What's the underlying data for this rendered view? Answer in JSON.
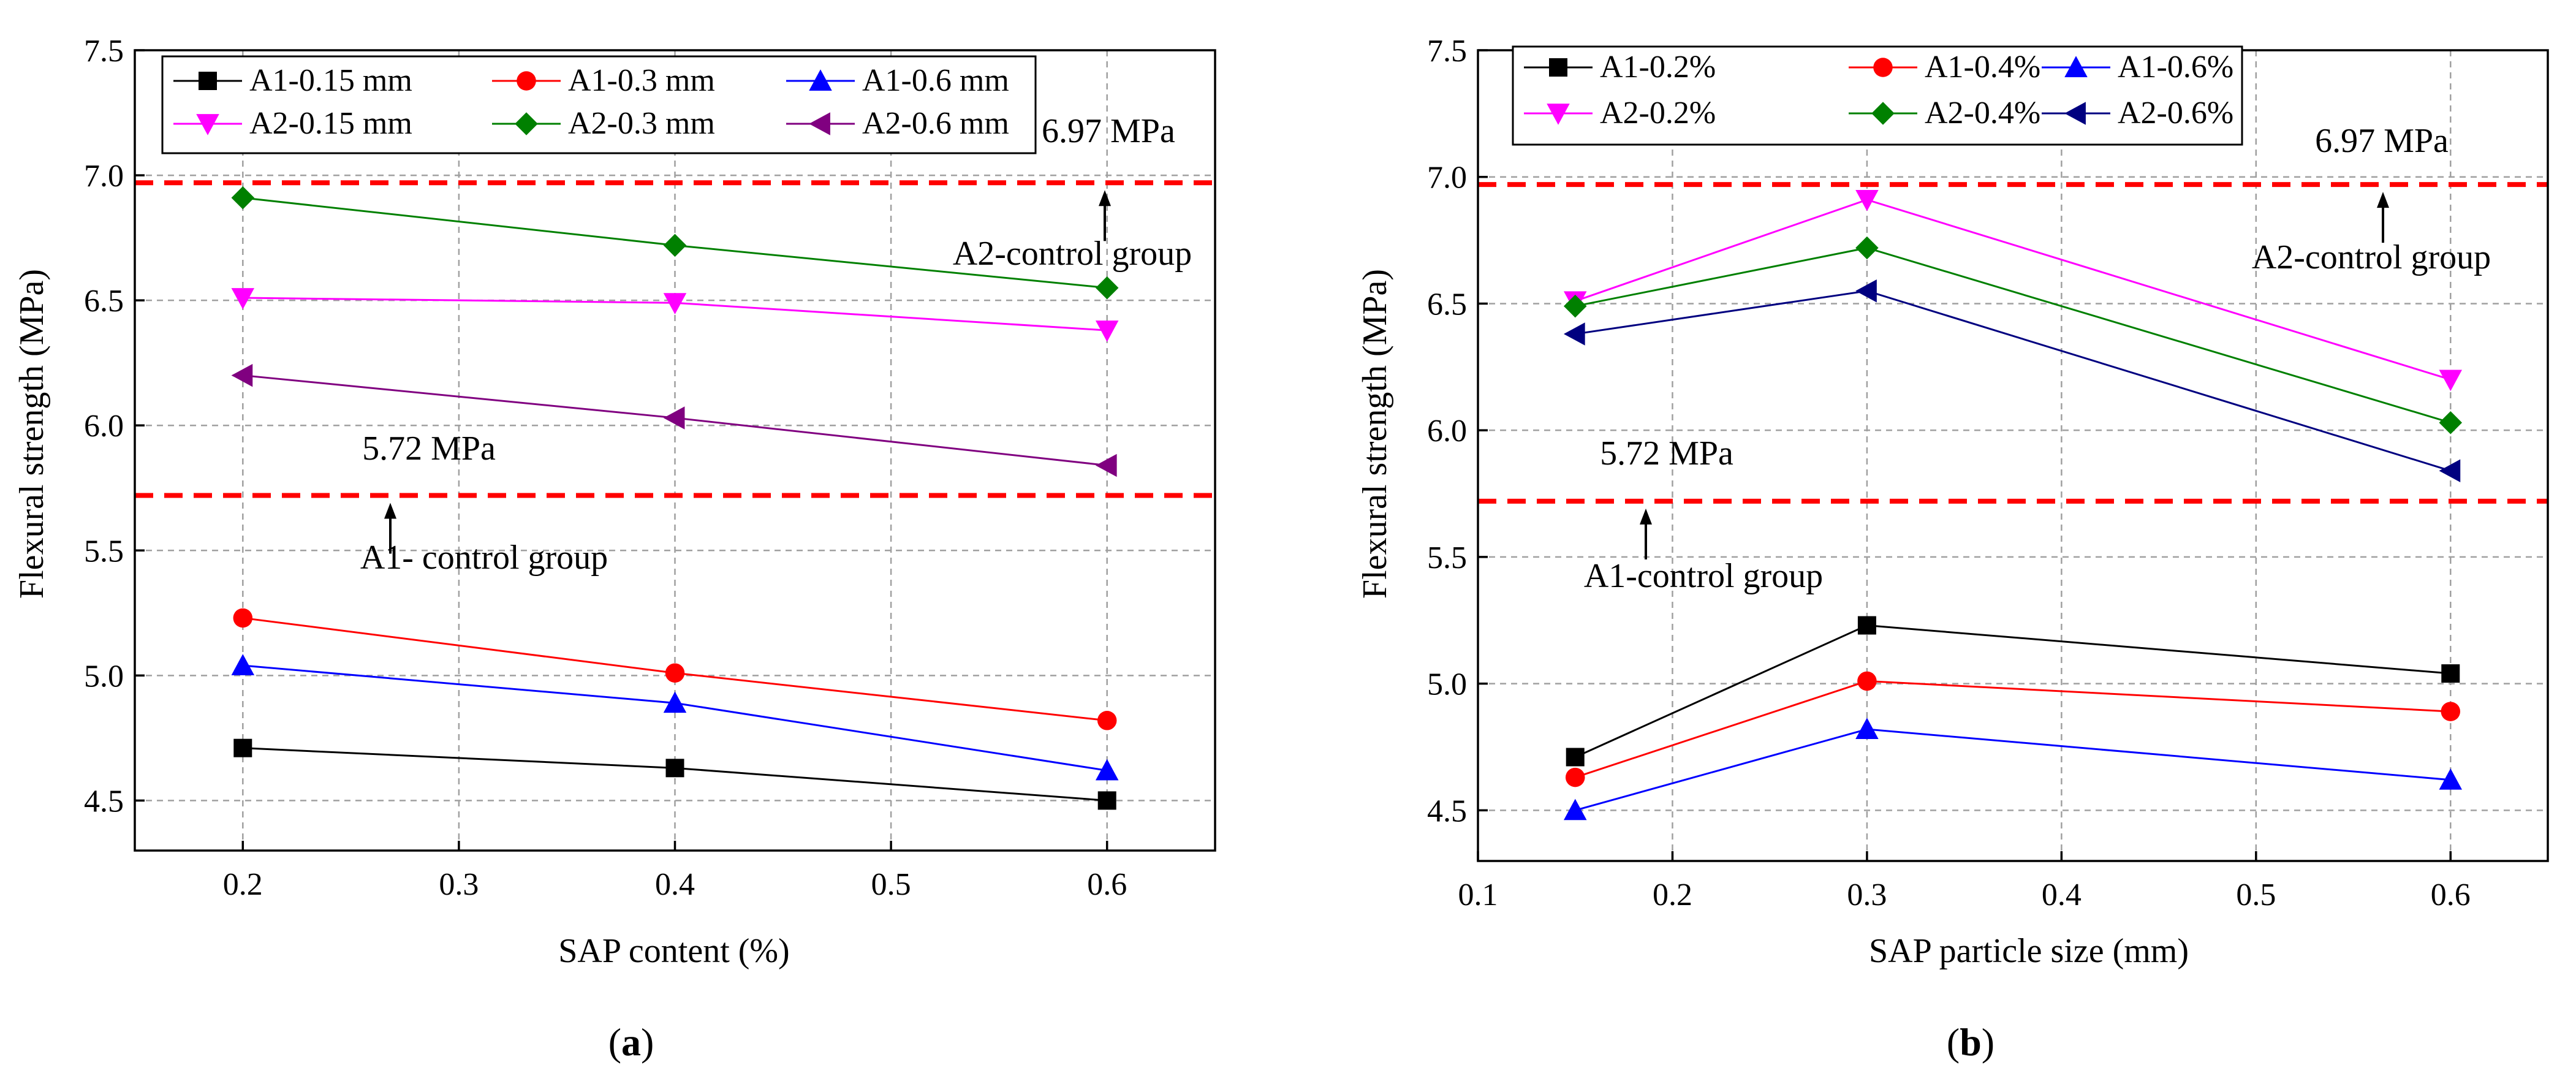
{
  "chart_data": [
    {
      "panel_label": "a",
      "type": "line",
      "xlabel": "SAP content (%)",
      "ylabel": "Flexural strength (MPa)",
      "xlim": [
        0.15,
        0.65
      ],
      "ylim": [
        4.3,
        7.5
      ],
      "xticks": [
        "0.2",
        "0.3",
        "0.4",
        "0.5",
        "0.6"
      ],
      "yticks": [
        "4.5",
        "5.0",
        "5.5",
        "6.0",
        "6.5",
        "7.0",
        "7.5"
      ],
      "x": [
        0.2,
        0.4,
        0.6
      ],
      "grid": true,
      "legend_position": "top-left",
      "series": [
        {
          "name": "A1-0.15 mm",
          "color": "#000000",
          "marker": "square",
          "values": [
            4.71,
            4.63,
            4.5
          ]
        },
        {
          "name": "A1-0.3 mm",
          "color": "#ff0000",
          "marker": "circle",
          "values": [
            5.23,
            5.01,
            4.82
          ]
        },
        {
          "name": "A1-0.6 mm",
          "color": "#0000ff",
          "marker": "triangle-up",
          "values": [
            5.04,
            4.89,
            4.62
          ]
        },
        {
          "name": "A2-0.15 mm",
          "color": "#ff00ff",
          "marker": "triangle-down",
          "values": [
            6.51,
            6.49,
            6.38
          ]
        },
        {
          "name": "A2-0.3 mm",
          "color": "#008000",
          "marker": "diamond",
          "values": [
            6.91,
            6.72,
            6.55
          ]
        },
        {
          "name": "A2-0.6 mm",
          "color": "#800080",
          "marker": "triangle-left",
          "values": [
            6.2,
            6.03,
            5.84
          ]
        }
      ],
      "reference_lines": [
        {
          "value": 6.97,
          "color": "#ff0000",
          "value_label": "6.97 MPa",
          "group_label": "A2-control group"
        },
        {
          "value": 5.72,
          "color": "#ff0000",
          "value_label": "5.72 MPa",
          "group_label": "A1- control group"
        }
      ]
    },
    {
      "panel_label": "b",
      "type": "line",
      "xlabel": "SAP particle size (mm)",
      "ylabel": "Flexural strength (MPa)",
      "xlim": [
        0.1,
        0.65
      ],
      "ylim": [
        4.3,
        7.5
      ],
      "xticks": [
        "0.1",
        "0.2",
        "0.3",
        "0.4",
        "0.5",
        "0.6"
      ],
      "yticks": [
        "4.5",
        "5.0",
        "5.5",
        "6.0",
        "6.5",
        "7.0",
        "7.5"
      ],
      "x": [
        0.15,
        0.3,
        0.6
      ],
      "grid": true,
      "legend_position": "top-left",
      "series": [
        {
          "name": "A1-0.2%",
          "color": "#000000",
          "marker": "square",
          "values": [
            4.71,
            5.23,
            5.04
          ]
        },
        {
          "name": "A1-0.4%",
          "color": "#ff0000",
          "marker": "circle",
          "values": [
            4.63,
            5.01,
            4.89
          ]
        },
        {
          "name": "A1-0.6%",
          "color": "#0000ff",
          "marker": "triangle-up",
          "values": [
            4.5,
            4.82,
            4.62
          ]
        },
        {
          "name": "A2-0.2%",
          "color": "#ff00ff",
          "marker": "triangle-down",
          "values": [
            6.51,
            6.91,
            6.2
          ]
        },
        {
          "name": "A2-0.4%",
          "color": "#008000",
          "marker": "diamond",
          "values": [
            6.49,
            6.72,
            6.03
          ]
        },
        {
          "name": "A2-0.6%",
          "color": "#000080",
          "marker": "triangle-left",
          "values": [
            6.38,
            6.55,
            5.84
          ]
        }
      ],
      "reference_lines": [
        {
          "value": 6.97,
          "color": "#ff0000",
          "value_label": "6.97 MPa",
          "group_label": "A2-control group"
        },
        {
          "value": 5.72,
          "color": "#ff0000",
          "value_label": "5.72 MPa",
          "group_label": "A1-control group"
        }
      ]
    }
  ]
}
